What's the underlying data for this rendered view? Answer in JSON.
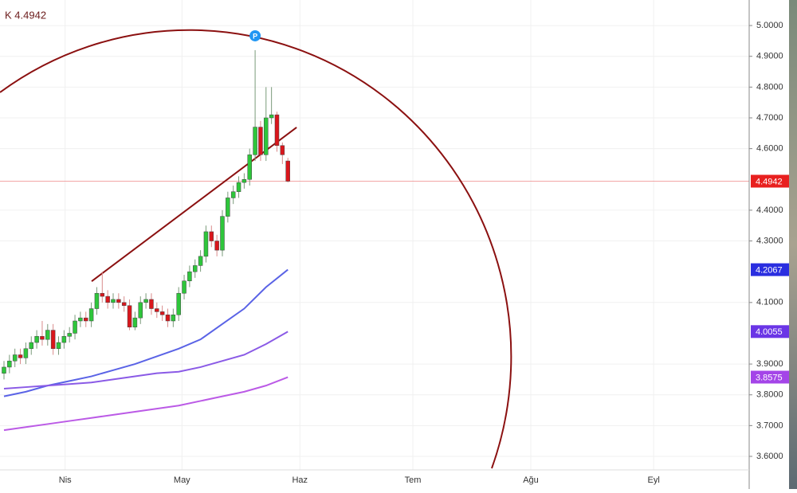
{
  "chart_data": {
    "type": "candlestick",
    "title": "K 4.4942",
    "open": [
      3.87,
      3.89,
      3.91,
      3.93,
      3.92,
      3.95,
      3.97,
      3.99,
      3.98,
      4.01,
      3.95,
      3.97,
      3.99,
      4.0,
      4.04,
      4.05,
      4.04,
      4.08,
      4.13,
      4.12,
      4.1,
      4.11,
      4.1,
      4.09,
      4.02,
      4.05,
      4.1,
      4.11,
      4.08,
      4.07,
      4.06,
      4.04,
      4.06,
      4.13,
      4.17,
      4.2,
      4.22,
      4.25,
      4.33,
      4.3,
      4.27,
      4.38,
      4.44,
      4.46,
      4.49,
      4.5,
      4.58,
      4.67,
      4.58,
      4.7,
      4.71,
      4.61,
      4.56
    ],
    "high": [
      3.91,
      3.93,
      3.95,
      3.95,
      3.97,
      3.99,
      4.01,
      4.04,
      4.03,
      4.03,
      3.99,
      4.01,
      4.02,
      4.06,
      4.07,
      4.07,
      4.1,
      4.15,
      4.2,
      4.14,
      4.13,
      4.13,
      4.12,
      4.11,
      4.07,
      4.12,
      4.13,
      4.13,
      4.1,
      4.09,
      4.08,
      4.08,
      4.15,
      4.19,
      4.22,
      4.24,
      4.27,
      4.35,
      4.35,
      4.32,
      4.4,
      4.46,
      4.48,
      4.51,
      4.52,
      4.6,
      4.92,
      4.69,
      4.8,
      4.8,
      4.72,
      4.62,
      4.57
    ],
    "low": [
      3.85,
      3.87,
      3.89,
      3.9,
      3.9,
      3.93,
      3.95,
      3.96,
      3.96,
      3.93,
      3.93,
      3.95,
      3.97,
      3.98,
      4.02,
      4.02,
      4.02,
      4.06,
      4.1,
      4.08,
      4.08,
      4.08,
      4.07,
      4.01,
      4.01,
      4.03,
      4.08,
      4.06,
      4.05,
      4.04,
      4.02,
      4.02,
      4.04,
      4.11,
      4.15,
      4.18,
      4.2,
      4.23,
      4.28,
      4.25,
      4.25,
      4.36,
      4.42,
      4.44,
      4.47,
      4.48,
      4.56,
      4.56,
      4.56,
      4.68,
      4.59,
      4.55,
      4.49
    ],
    "close": [
      3.89,
      3.91,
      3.93,
      3.92,
      3.95,
      3.97,
      3.99,
      3.98,
      4.01,
      3.95,
      3.97,
      3.99,
      4.0,
      4.04,
      4.05,
      4.04,
      4.08,
      4.13,
      4.12,
      4.1,
      4.11,
      4.1,
      4.09,
      4.02,
      4.05,
      4.1,
      4.11,
      4.08,
      4.07,
      4.06,
      4.04,
      4.06,
      4.13,
      4.17,
      4.2,
      4.22,
      4.25,
      4.33,
      4.3,
      4.27,
      4.38,
      4.44,
      4.46,
      4.49,
      4.5,
      4.58,
      4.67,
      4.58,
      4.7,
      4.71,
      4.61,
      4.58,
      4.494
    ],
    "up_color": "#2ec63b",
    "down_color": "#d9161c",
    "series": [
      {
        "color": "#5a63e6",
        "x": [
          0,
          4,
          8,
          12,
          16,
          20,
          24,
          28,
          32,
          36,
          40,
          44,
          48,
          52
        ],
        "values": [
          3.795,
          3.81,
          3.83,
          3.845,
          3.86,
          3.88,
          3.9,
          3.925,
          3.95,
          3.98,
          4.03,
          4.08,
          4.15,
          4.2067
        ]
      },
      {
        "color": "#8a5ae6",
        "x": [
          0,
          4,
          8,
          12,
          16,
          20,
          24,
          28,
          32,
          36,
          40,
          44,
          48,
          52
        ],
        "values": [
          3.82,
          3.825,
          3.83,
          3.835,
          3.84,
          3.85,
          3.86,
          3.87,
          3.875,
          3.89,
          3.91,
          3.93,
          3.965,
          4.0055
        ]
      },
      {
        "color": "#bb5ae6",
        "x": [
          0,
          4,
          8,
          12,
          16,
          20,
          24,
          28,
          32,
          36,
          40,
          44,
          48,
          52
        ],
        "values": [
          3.685,
          3.695,
          3.705,
          3.715,
          3.725,
          3.735,
          3.745,
          3.755,
          3.765,
          3.78,
          3.795,
          3.81,
          3.83,
          3.8575
        ]
      }
    ],
    "trend_line": {
      "color": "#8b1010",
      "x": [
        16.06,
        53.6
      ],
      "values": [
        4.169,
        4.669
      ]
    },
    "price_labels": [
      {
        "value": 4.4942,
        "color": "#e8201f"
      },
      {
        "value": 4.2067,
        "color": "#2a2ee0"
      },
      {
        "value": 4.0055,
        "color": "#6a35e6"
      },
      {
        "value": 3.8575,
        "color": "#a445e8"
      }
    ],
    "marker_label": "P",
    "xlim": [
      -0.73,
      136.5
    ],
    "ylim": [
      3.556,
      5.083
    ],
    "xticks": [
      {
        "value": 11.2,
        "label": "Nis"
      },
      {
        "value": 32.6,
        "label": "May"
      },
      {
        "value": 54.2,
        "label": "Haz"
      },
      {
        "value": 74.9,
        "label": "Tem"
      },
      {
        "value": 96.5,
        "label": "Ağu"
      },
      {
        "value": 119,
        "label": "Eyl"
      }
    ],
    "yticks": [
      {
        "value": 3.6,
        "label": "3.6000"
      },
      {
        "value": 3.7,
        "label": "3.7000"
      },
      {
        "value": 3.8,
        "label": "3.8000"
      },
      {
        "value": 3.9,
        "label": "3.9000"
      },
      {
        "value": 4.1,
        "label": "4.1000"
      },
      {
        "value": 4.3,
        "label": "4.3000"
      },
      {
        "value": 4.4,
        "label": "4.4000"
      },
      {
        "value": 4.6,
        "label": "4.6000"
      },
      {
        "value": 4.7,
        "label": "4.7000"
      },
      {
        "value": 4.8,
        "label": "4.8000"
      },
      {
        "value": 4.9,
        "label": "4.9000"
      },
      {
        "value": 5,
        "label": "5.0000"
      }
    ],
    "grid": true
  }
}
